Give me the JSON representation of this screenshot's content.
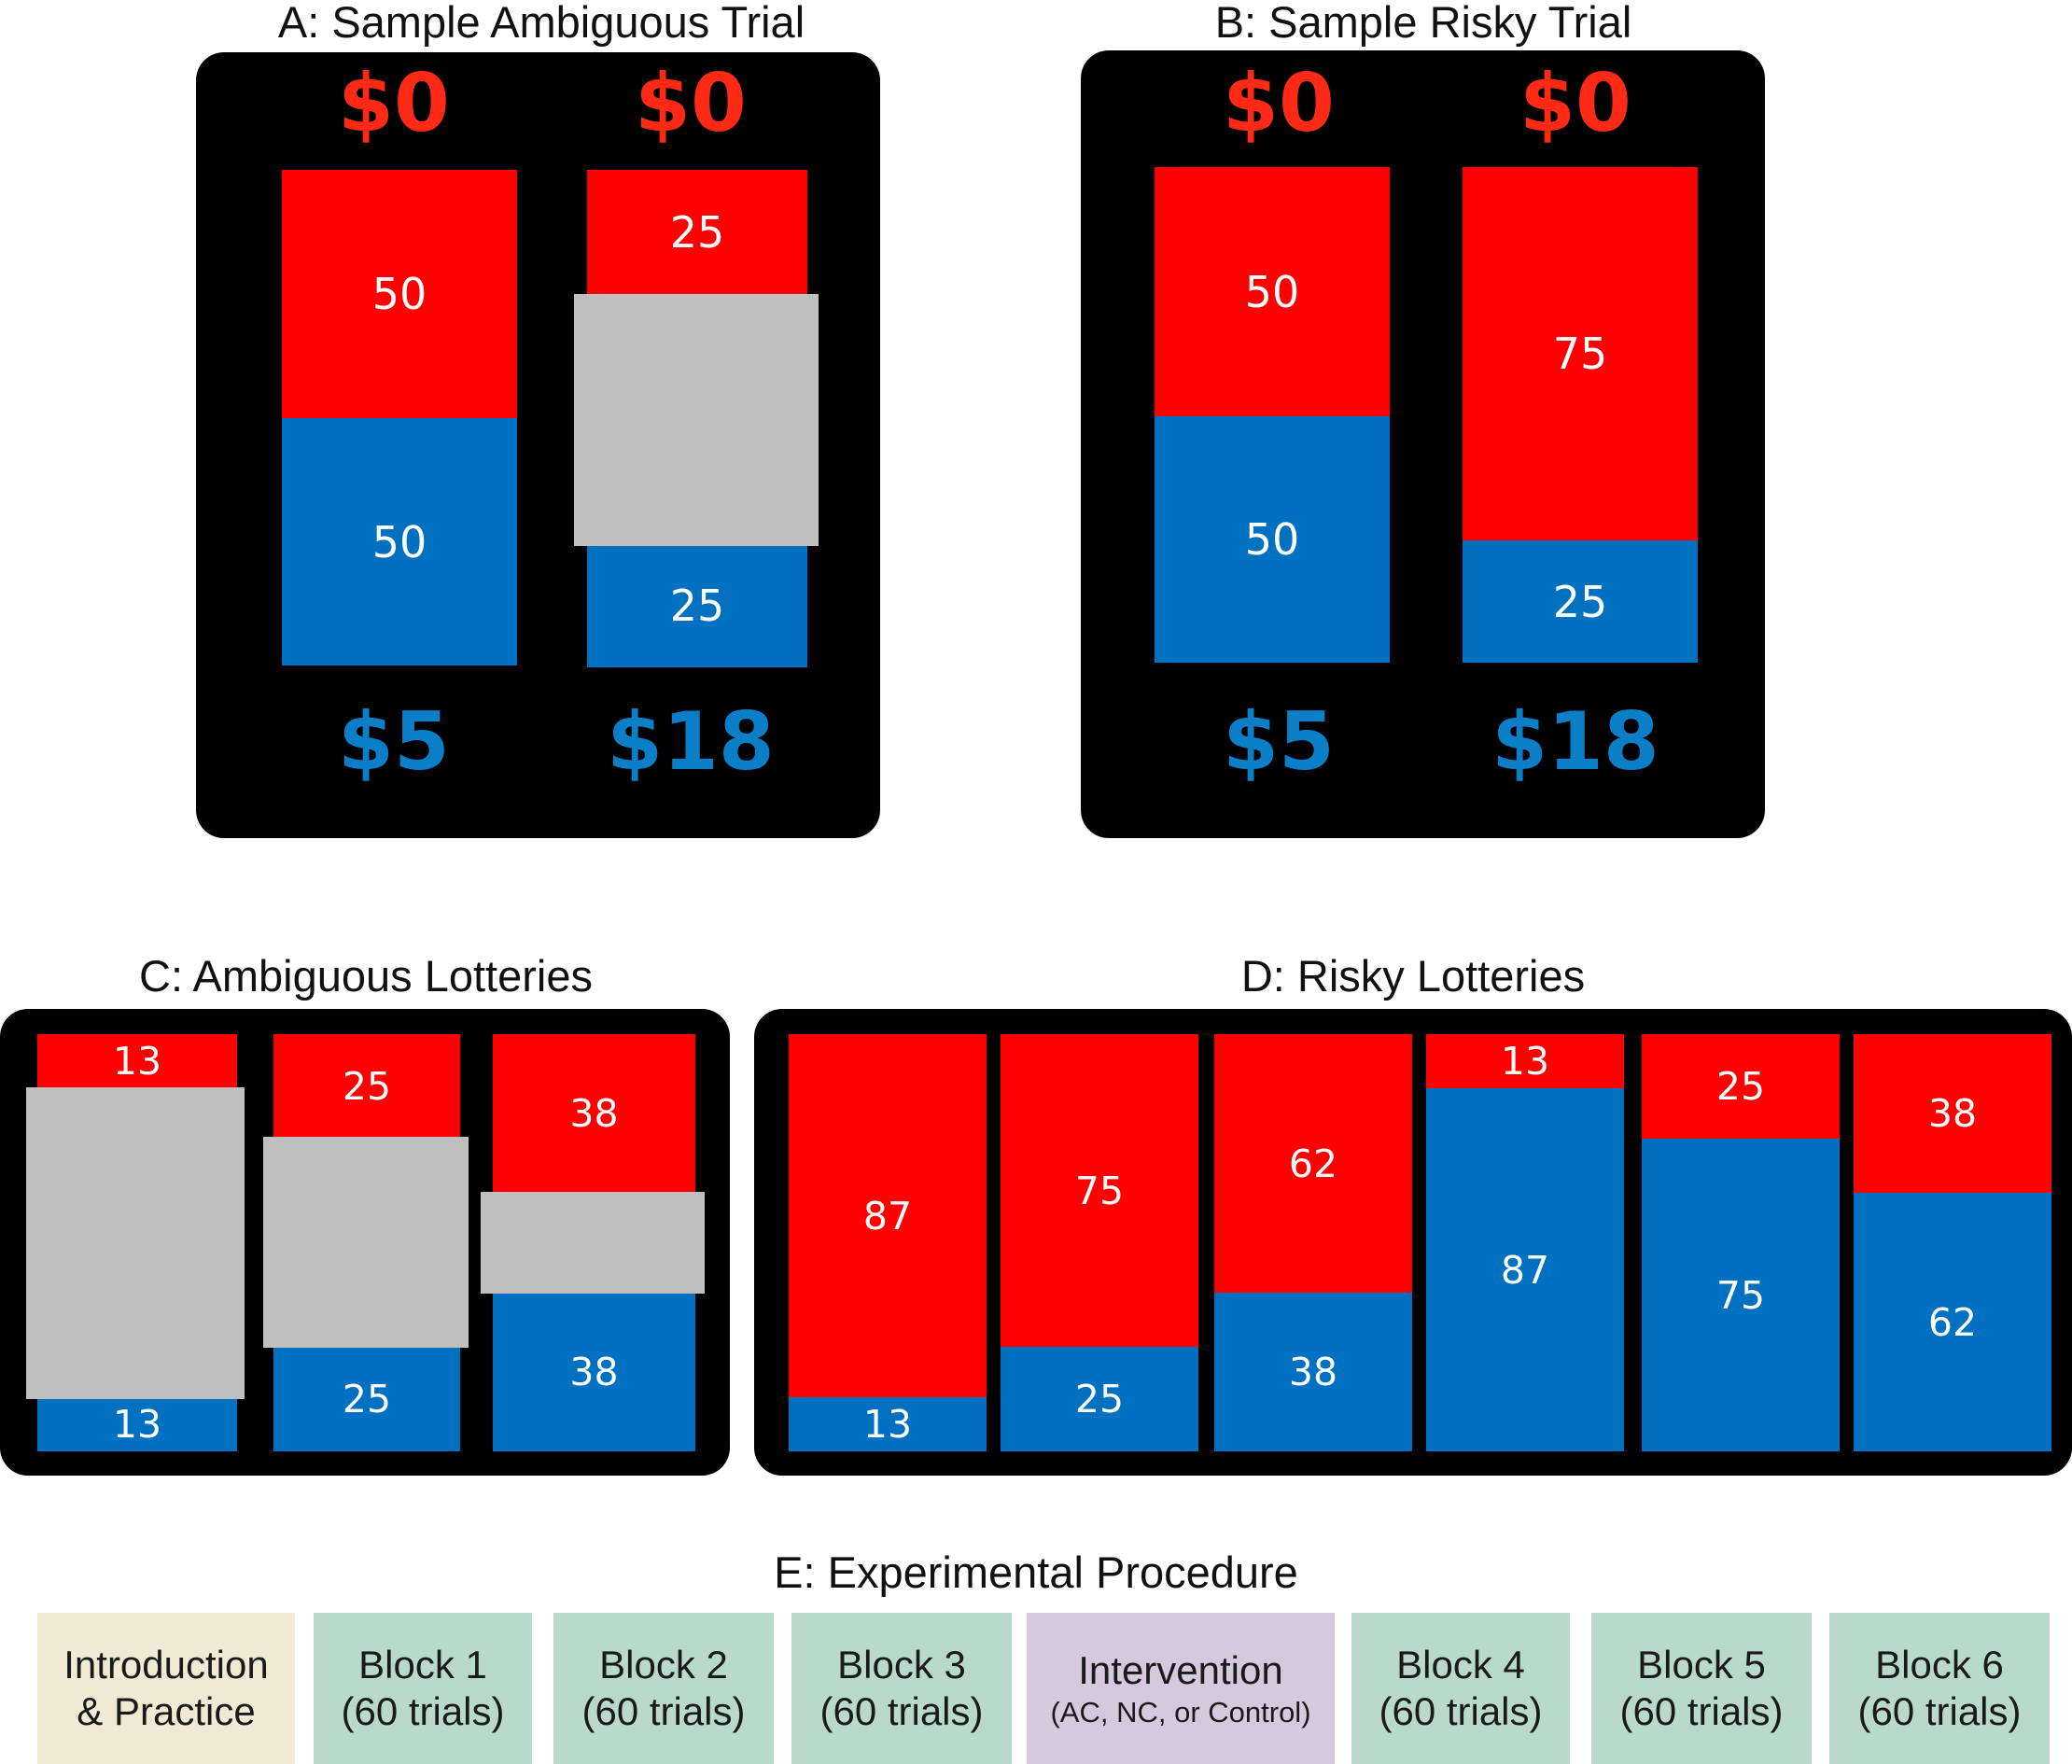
{
  "colors": {
    "loss": "#ff0000",
    "win": "#0070c0",
    "ambiguity": "#bfbfbf",
    "panel": "#000000",
    "intro": "#f0e9d3",
    "block": "#b8d9cb",
    "intervention": "#d6c9de"
  },
  "panel_a": {
    "title": "A: Sample Ambiguous Trial",
    "left": {
      "loss_amount": "$0",
      "win_amount": "$5",
      "red_label": "50",
      "blue_label": "50"
    },
    "right": {
      "loss_amount": "$0",
      "win_amount": "$18",
      "red_label": "25",
      "blue_label": "25",
      "ambiguity_level": 50
    }
  },
  "panel_b": {
    "title": "B: Sample Risky Trial",
    "left": {
      "loss_amount": "$0",
      "win_amount": "$5",
      "red_label": "50",
      "blue_label": "50"
    },
    "right": {
      "loss_amount": "$0",
      "win_amount": "$18",
      "red_label": "75",
      "blue_label": "25"
    }
  },
  "panel_c": {
    "title": "C: Ambiguous Lotteries",
    "bars": [
      {
        "red": "13",
        "blue": "13",
        "ambiguity_level": 74
      },
      {
        "red": "25",
        "blue": "25",
        "ambiguity_level": 50
      },
      {
        "red": "38",
        "blue": "38",
        "ambiguity_level": 24
      }
    ]
  },
  "panel_d": {
    "title": "D: Risky Lotteries",
    "bars": [
      {
        "red": "87",
        "blue": "13"
      },
      {
        "red": "75",
        "blue": "25"
      },
      {
        "red": "62",
        "blue": "38"
      },
      {
        "red": "13",
        "blue": "87"
      },
      {
        "red": "25",
        "blue": "75"
      },
      {
        "red": "38",
        "blue": "62"
      }
    ]
  },
  "panel_e": {
    "title": "E: Experimental Procedure",
    "steps": [
      {
        "line1": "Introduction",
        "line2": "& Practice"
      },
      {
        "line1": "Block 1",
        "line2": "(60 trials)"
      },
      {
        "line1": "Block 2",
        "line2": "(60 trials)"
      },
      {
        "line1": "Block 3",
        "line2": "(60 trials)"
      },
      {
        "line1": "Intervention",
        "line2": "(AC, NC, or Control)"
      },
      {
        "line1": "Block 4",
        "line2": "(60 trials)"
      },
      {
        "line1": "Block 5",
        "line2": "(60 trials)"
      },
      {
        "line1": "Block 6",
        "line2": "(60 trials)"
      }
    ]
  }
}
